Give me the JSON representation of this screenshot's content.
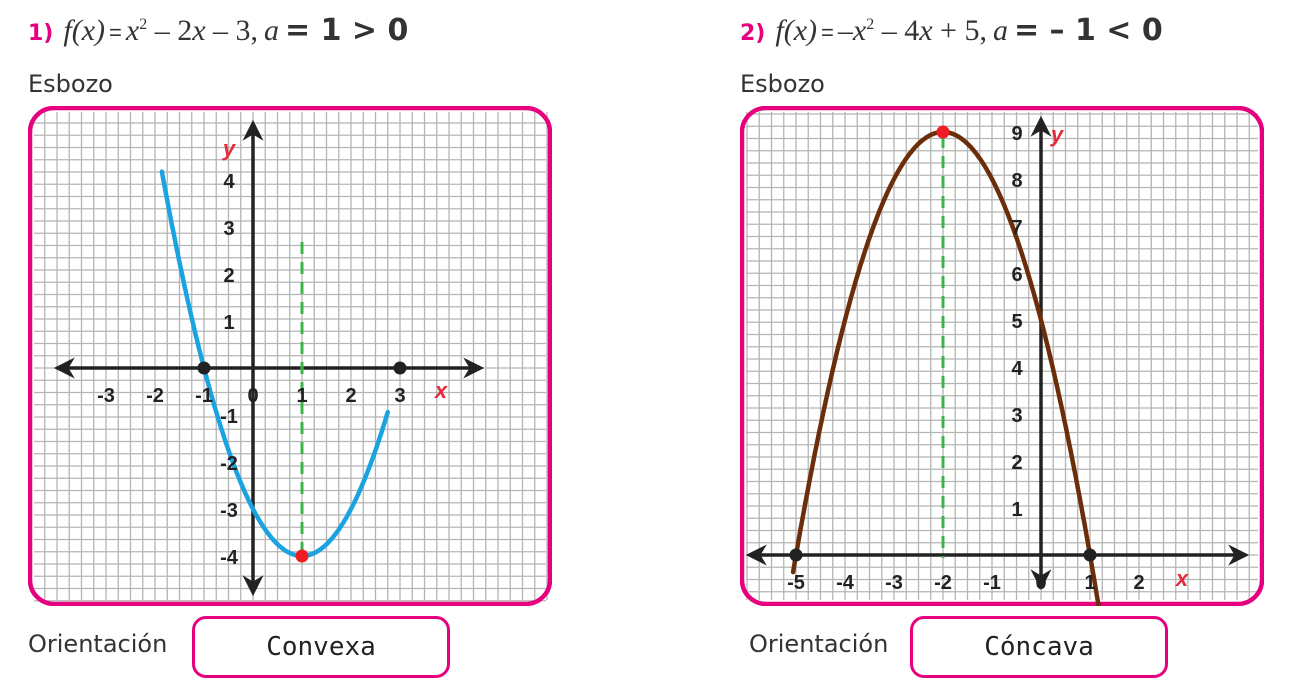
{
  "problems": [
    {
      "number": "1)",
      "fx": "f(x)",
      "eq": "=",
      "expr_parts": [
        "x",
        "2",
        " – 2",
        "x",
        " – 3,"
      ],
      "a_label": "a",
      "a_condition": "= 1 > 0",
      "sketch_label": "Esbozo",
      "orientation_label": "Orientación",
      "orientation_value": "Convexa",
      "x_axis_label": "x",
      "y_axis_label": "y",
      "x_ticks": [
        "-3",
        "-2",
        "-1",
        "0",
        "1",
        "2",
        "3"
      ],
      "y_ticks": [
        "4",
        "3",
        "2",
        "1",
        "-1",
        "-2",
        "-3",
        "-4"
      ],
      "curve_color": "#1aa3e0",
      "vertex": [
        1,
        -4
      ],
      "roots": [
        [
          -1,
          0
        ],
        [
          3,
          0
        ]
      ]
    },
    {
      "number": "2)",
      "fx": "f(x)",
      "eq": "=",
      "expr_parts": [
        "–x",
        "2",
        " – 4",
        "x",
        " + 5,"
      ],
      "a_label": "a",
      "a_condition": "= – 1 < 0",
      "sketch_label": "Esbozo",
      "orientation_label": "Orientación",
      "orientation_value": "Cóncava",
      "x_axis_label": "x",
      "y_axis_label": "y",
      "x_ticks": [
        "-5",
        "-4",
        "-3",
        "-2",
        "-1",
        "0",
        "1",
        "2"
      ],
      "y_ticks": [
        "9",
        "8",
        "7",
        "6",
        "5",
        "4",
        "3",
        "2",
        "1"
      ],
      "curve_color": "#6b2e0a",
      "vertex": [
        -2,
        9
      ],
      "roots": [
        [
          -5,
          0
        ],
        [
          1,
          0
        ]
      ]
    }
  ],
  "colors": {
    "frame": "#e6007e",
    "grid": "#b5b5b5",
    "axis": "#222222",
    "axis_of_symmetry": "#3cb44b",
    "vertex": "#ee1c24",
    "root": "#222222"
  }
}
